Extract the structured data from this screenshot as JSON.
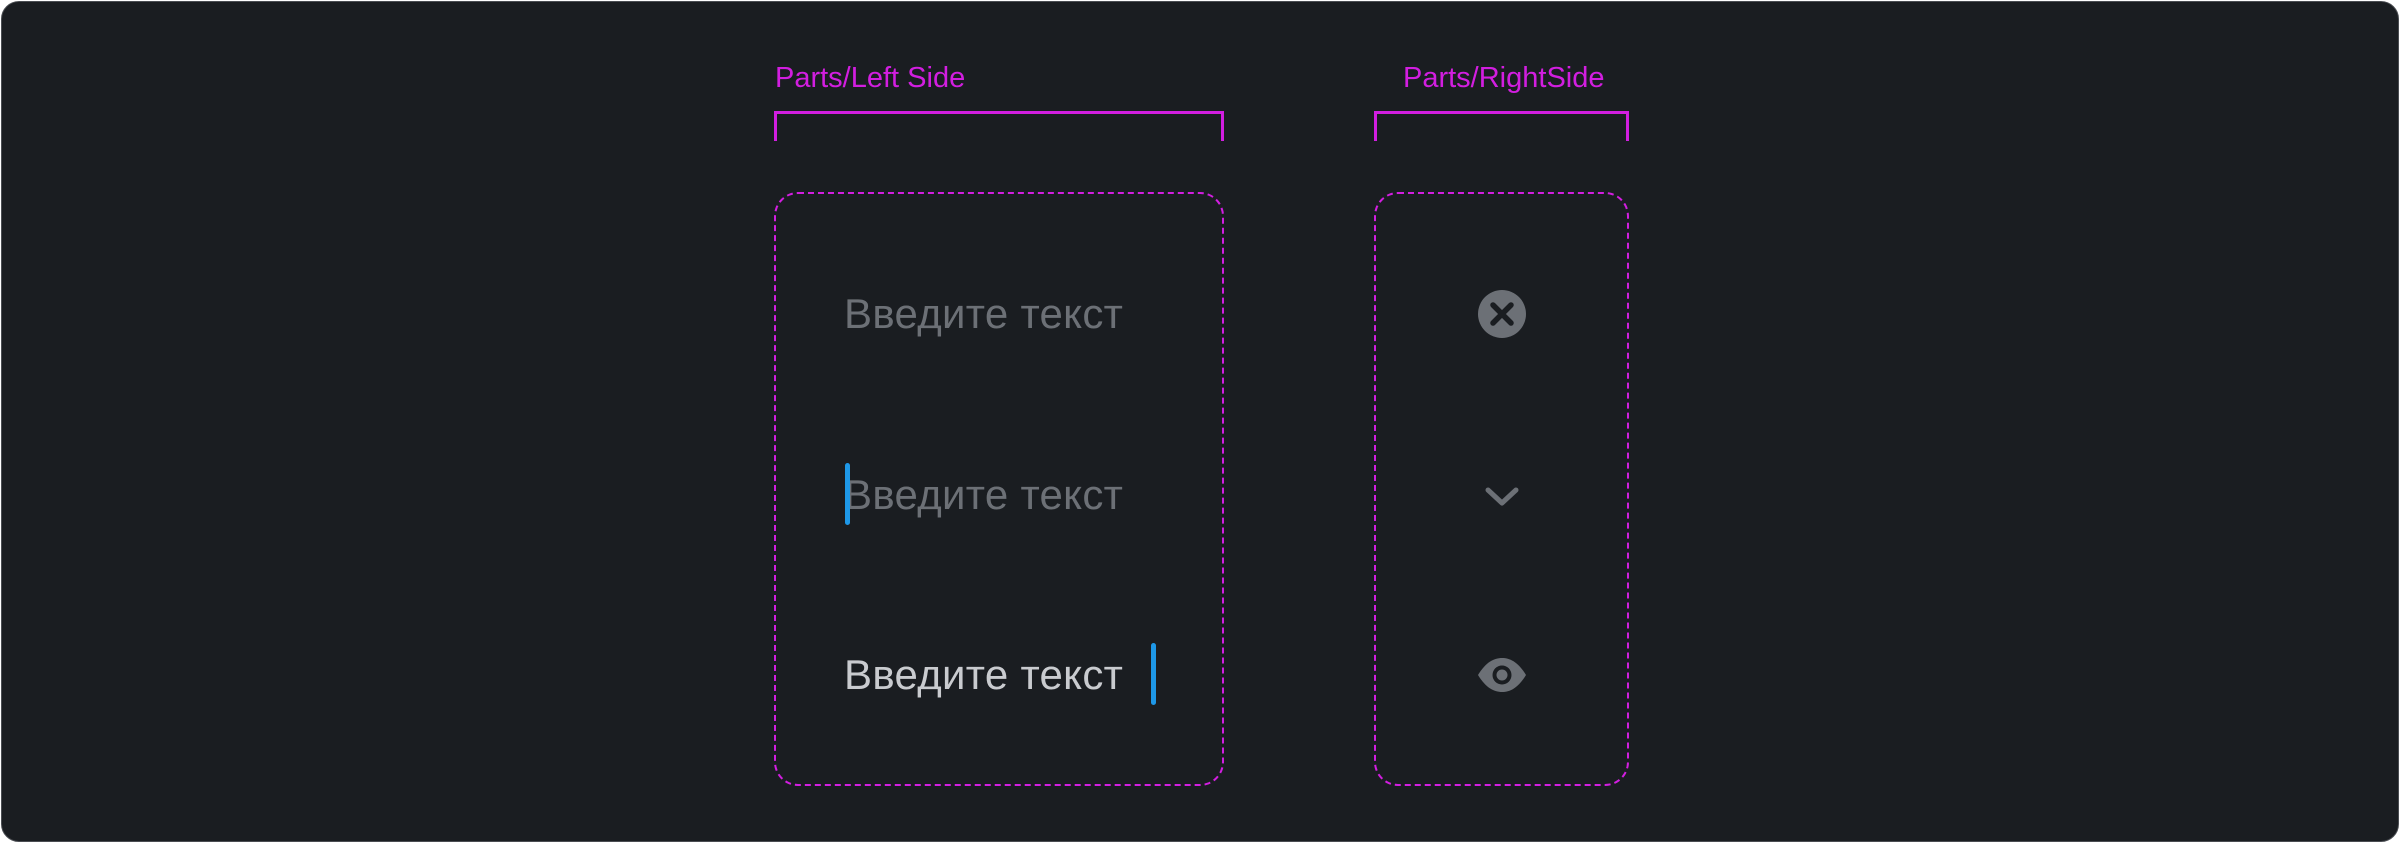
{
  "parts": {
    "left_side": {
      "label": "Parts/Left Side",
      "fields": [
        {
          "state": "placeholder",
          "text": "Введите текст"
        },
        {
          "state": "focused-empty",
          "text": "Введите текст"
        },
        {
          "state": "filled",
          "text": "Введите текст"
        }
      ]
    },
    "right_side": {
      "label": "Parts/RightSide",
      "icons": [
        "clear-circle-icon",
        "chevron-down-icon",
        "eye-icon"
      ]
    }
  },
  "colors": {
    "background": "#1a1d21",
    "accent_magenta": "#d21ee0",
    "caret": "#1e98e8",
    "placeholder_text": "#6c7076",
    "filled_text": "#c9cbcf",
    "icon": "#6c7076"
  }
}
